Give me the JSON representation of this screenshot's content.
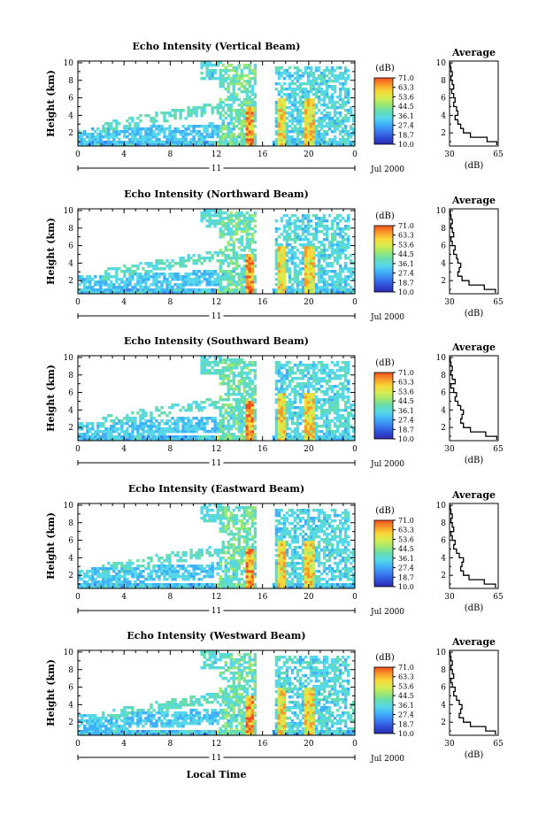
{
  "palette": [
    "#2a2ab0",
    "#3050d8",
    "#3a7ff0",
    "#40b0f8",
    "#56d8e8",
    "#66ddb0",
    "#9ce870",
    "#d8ec50",
    "#f8d838",
    "#f89828",
    "#f05020"
  ],
  "colorbar": {
    "unit_label": "(dB)",
    "ticks": [
      "71.0",
      "63.3",
      "53.6",
      "44.5",
      "36.1",
      "27.4",
      "18.7",
      "10.0"
    ]
  },
  "shared": {
    "date_label": "Jul 2000",
    "day_label": "11",
    "xlabel": "Local Time",
    "ylabel": "Height (km)",
    "avg_title": "Average",
    "avg_xlabel": "(dB)"
  },
  "chart_data": [
    {
      "type": "heatmap",
      "title": "Echo Intensity (Vertical Beam)",
      "x_ticks": [
        "0",
        "4",
        "8",
        "12",
        "16",
        "20",
        "0"
      ],
      "xlim": [
        0,
        24
      ],
      "y_ticks": [
        "2",
        "4",
        "6",
        "8",
        "10"
      ],
      "ylim": [
        0.5,
        10.2
      ],
      "avg_profile": {
        "type": "line",
        "xlim": [
          30,
          65
        ],
        "x_ticks": [
          "30",
          "65"
        ],
        "y_ticks": [
          "2",
          "4",
          "6",
          "8",
          "10"
        ],
        "height_km": [
          0.6,
          1,
          1.5,
          2,
          2.5,
          3,
          3.5,
          4,
          4.5,
          5,
          5.5,
          6,
          6.5,
          7,
          7.5,
          8,
          8.5,
          9,
          9.5,
          10
        ],
        "value_db": [
          64,
          57,
          45,
          40,
          38,
          36,
          34,
          36,
          35,
          33,
          34,
          33,
          31.5,
          33,
          32,
          31,
          32,
          31,
          30.5,
          30
        ]
      }
    },
    {
      "type": "heatmap",
      "title": "Echo Intensity (Northward Beam)",
      "x_ticks": [
        "0",
        "4",
        "8",
        "12",
        "16",
        "20",
        "0"
      ],
      "xlim": [
        0,
        24
      ],
      "y_ticks": [
        "2",
        "4",
        "6",
        "8",
        "10"
      ],
      "ylim": [
        0.5,
        10.2
      ],
      "avg_profile": {
        "type": "line",
        "xlim": [
          30,
          65
        ],
        "x_ticks": [
          "30",
          "65"
        ],
        "y_ticks": [
          "2",
          "4",
          "6",
          "8",
          "10"
        ],
        "height_km": [
          0.6,
          1,
          1.5,
          2,
          2.5,
          3,
          3.5,
          4,
          4.5,
          5,
          5.5,
          6,
          6.5,
          7,
          7.5,
          8,
          8.5,
          9,
          9.5,
          10
        ],
        "value_db": [
          63,
          55,
          44,
          39,
          36,
          37,
          38,
          36,
          35,
          33,
          34,
          32,
          31,
          33,
          32,
          31,
          32,
          31,
          30.5,
          30
        ]
      }
    },
    {
      "type": "heatmap",
      "title": "Echo Intensity (Southward Beam)",
      "x_ticks": [
        "0",
        "4",
        "8",
        "12",
        "16",
        "20",
        "0"
      ],
      "xlim": [
        0,
        24
      ],
      "y_ticks": [
        "2",
        "4",
        "6",
        "8",
        "10"
      ],
      "ylim": [
        0.5,
        10.2
      ],
      "avg_profile": {
        "type": "line",
        "xlim": [
          30,
          65
        ],
        "x_ticks": [
          "30",
          "65"
        ],
        "y_ticks": [
          "2",
          "4",
          "6",
          "8",
          "10"
        ],
        "height_km": [
          0.6,
          1,
          1.5,
          2,
          2.5,
          3,
          3.5,
          4,
          4.5,
          5,
          5.5,
          6,
          6.5,
          7,
          7.5,
          8,
          8.5,
          9,
          9.5,
          10
        ],
        "value_db": [
          64,
          56,
          45,
          40,
          38,
          39,
          40,
          38,
          36,
          34,
          35,
          33,
          31,
          34,
          32,
          31,
          32,
          31,
          30.5,
          30
        ]
      }
    },
    {
      "type": "heatmap",
      "title": "Echo Intensity (Eastward Beam)",
      "x_ticks": [
        "0",
        "4",
        "8",
        "12",
        "16",
        "20",
        "0"
      ],
      "xlim": [
        0,
        24
      ],
      "y_ticks": [
        "2",
        "4",
        "6",
        "8",
        "10"
      ],
      "ylim": [
        0.5,
        10.2
      ],
      "avg_profile": {
        "type": "line",
        "xlim": [
          30,
          65
        ],
        "x_ticks": [
          "30",
          "65"
        ],
        "y_ticks": [
          "2",
          "4",
          "6",
          "8",
          "10"
        ],
        "height_km": [
          0.6,
          1,
          1.5,
          2,
          2.5,
          3,
          3.5,
          4,
          4.5,
          5,
          5.5,
          6,
          6.5,
          7,
          7.5,
          8,
          8.5,
          9,
          9.5,
          10
        ],
        "value_db": [
          63,
          55,
          44,
          40,
          38,
          39,
          40,
          37,
          35,
          33,
          34,
          32,
          31,
          33,
          32,
          31,
          32,
          31,
          30.5,
          30
        ]
      }
    },
    {
      "type": "heatmap",
      "title": "Echo Intensity (Westward Beam)",
      "x_ticks": [
        "0",
        "4",
        "8",
        "12",
        "16",
        "20",
        "0"
      ],
      "xlim": [
        0,
        24
      ],
      "y_ticks": [
        "2",
        "4",
        "6",
        "8",
        "10"
      ],
      "ylim": [
        0.5,
        10.2
      ],
      "avg_profile": {
        "type": "line",
        "xlim": [
          30,
          65
        ],
        "x_ticks": [
          "30",
          "65"
        ],
        "y_ticks": [
          "2",
          "4",
          "6",
          "8",
          "10"
        ],
        "height_km": [
          0.6,
          1,
          1.5,
          2,
          2.5,
          3,
          3.5,
          4,
          4.5,
          5,
          5.5,
          6,
          6.5,
          7,
          7.5,
          8,
          8.5,
          9,
          9.5,
          10
        ],
        "value_db": [
          63,
          56,
          45,
          40,
          37,
          38,
          39,
          37,
          35,
          33,
          34,
          32,
          31,
          33,
          32,
          31,
          32,
          31,
          30.5,
          30
        ]
      }
    }
  ]
}
